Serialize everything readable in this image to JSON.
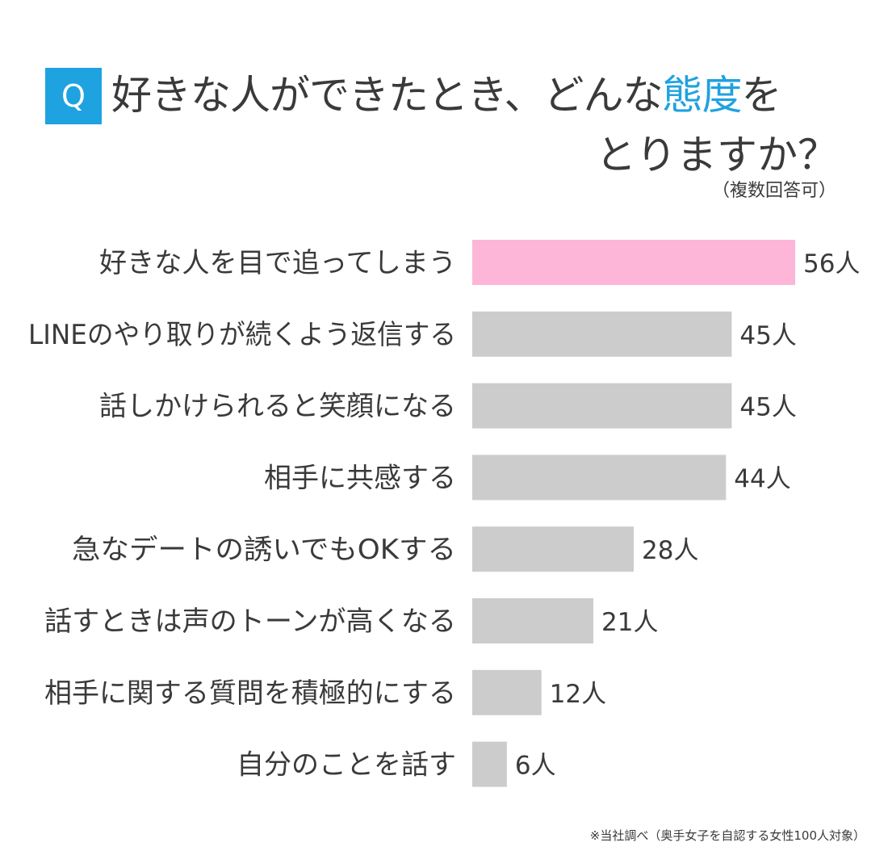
{
  "header": {
    "badge": "Q",
    "title_line1_pre": "好きな人ができたとき、どんな",
    "title_line1_accent": "態度",
    "title_line1_post": "を",
    "title_line2": "とりますか？",
    "note": "（複数回答可）"
  },
  "colors": {
    "accent": "#1fa2e0",
    "highlight_bar": "#fdb5d8",
    "bar": "#cccccc",
    "text": "#3a3a3a"
  },
  "chart_data": {
    "type": "bar",
    "orientation": "horizontal",
    "title": "好きな人ができたとき、どんな態度をとりますか？",
    "subtitle": "（複数回答可）",
    "unit": "人",
    "categories": [
      "好きな人を目で追ってしまう",
      "LINEのやり取りが続くよう返信する",
      "話しかけられると笑顔になる",
      "相手に共感する",
      "急なデートの誘いでもOKする",
      "話すときは声のトーンが高くなる",
      "相手に関する質問を積極的にする",
      "自分のことを話す"
    ],
    "values": [
      56,
      45,
      45,
      44,
      28,
      21,
      12,
      6
    ],
    "value_labels": [
      "56人",
      "45人",
      "45人",
      "44人",
      "28人",
      "21人",
      "12人",
      "6人"
    ],
    "highlight_index": 0,
    "xlim": [
      0,
      56
    ],
    "grid": false
  },
  "footer": {
    "note": "※当社調べ（奥手女子を自認する女性100人対象）"
  }
}
